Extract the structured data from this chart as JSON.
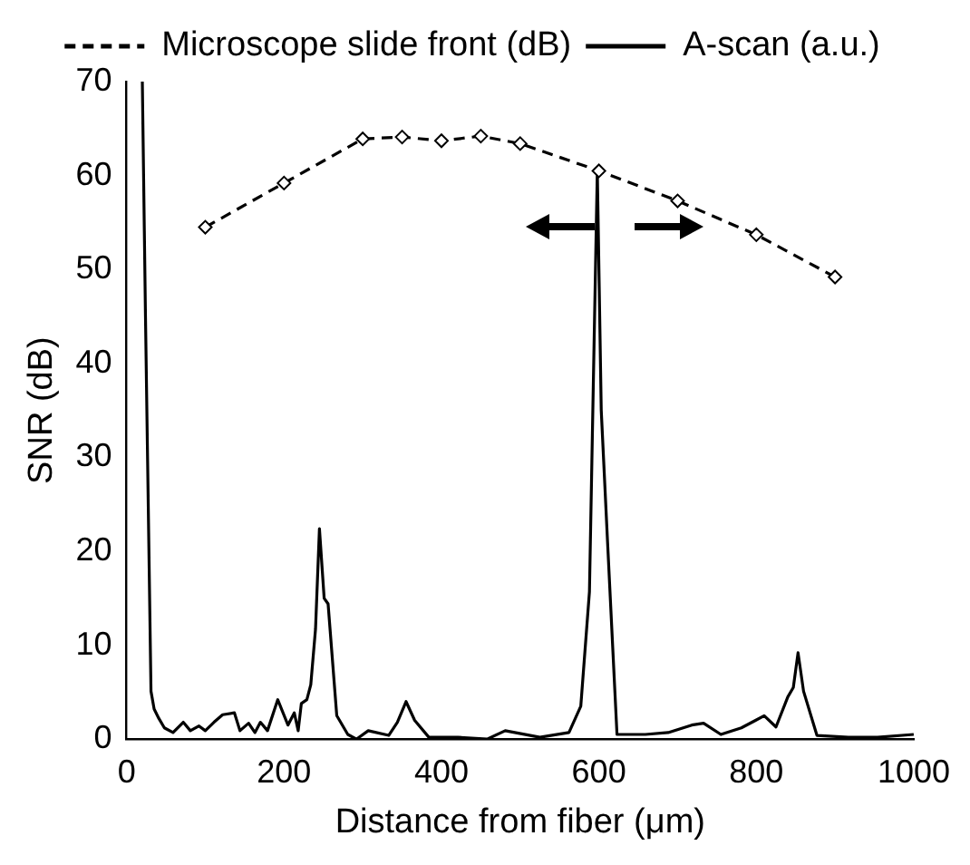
{
  "chart_data": {
    "type": "line",
    "xlabel": "Distance from fiber (μm)",
    "ylabel": "SNR (dB)",
    "xlim": [
      0,
      1000
    ],
    "xticks": [
      0,
      200,
      400,
      600,
      800,
      1000
    ],
    "ylim": [
      0,
      70
    ],
    "yticks": [
      0,
      10,
      20,
      30,
      40,
      50,
      60,
      70
    ],
    "grid": false,
    "legend": "top",
    "series": [
      {
        "name": "Microscope slide front (dB)",
        "color": "#000000",
        "line_style": "dashed",
        "marker": "diamond",
        "x": [
          100,
          200,
          300,
          350,
          400,
          450,
          500,
          600,
          700,
          800,
          900
        ],
        "values": [
          54.5,
          59.2,
          63.9,
          64.1,
          63.7,
          64.2,
          63.4,
          60.5,
          57.3,
          53.7,
          49.2
        ]
      },
      {
        "name": "A-scan (a.u.)",
        "color": "#000000",
        "line_style": "solid",
        "marker": "none",
        "x": [
          20,
          24,
          31,
          35,
          41,
          48,
          59,
          72,
          81,
          92,
          100,
          111,
          122,
          137,
          144,
          155,
          163,
          170,
          179,
          192,
          205,
          213,
          218,
          222,
          229,
          234,
          240,
          245,
          251,
          256,
          267,
          281,
          292,
          307,
          333,
          344,
          355,
          366,
          384,
          421,
          458,
          481,
          525,
          562,
          577,
          588,
          598,
          603,
          611,
          623,
          659,
          688,
          718,
          733,
          755,
          781,
          799,
          810,
          825,
          840,
          847,
          853,
          860,
          877,
          917,
          954,
          1000
        ],
        "values": [
          70,
          45,
          5.1,
          3.2,
          2.2,
          1.2,
          0.7,
          1.8,
          0.9,
          1.4,
          0.9,
          1.8,
          2.6,
          2.8,
          0.9,
          1.7,
          0.7,
          1.8,
          0.9,
          4.2,
          1.5,
          2.8,
          0.9,
          3.8,
          4.2,
          5.8,
          11.7,
          22.4,
          15,
          14.4,
          2.5,
          0.5,
          0,
          0.9,
          0.4,
          1.8,
          4,
          2,
          0.2,
          0.2,
          0,
          0.9,
          0.2,
          0.7,
          3.5,
          15.7,
          60.5,
          35,
          21,
          0.5,
          0.5,
          0.7,
          1.5,
          1.7,
          0.5,
          1.2,
          2,
          2.5,
          1.3,
          4.5,
          5.5,
          9.2,
          5.1,
          0.4,
          0.2,
          0.2,
          0.5
        ]
      }
    ]
  }
}
